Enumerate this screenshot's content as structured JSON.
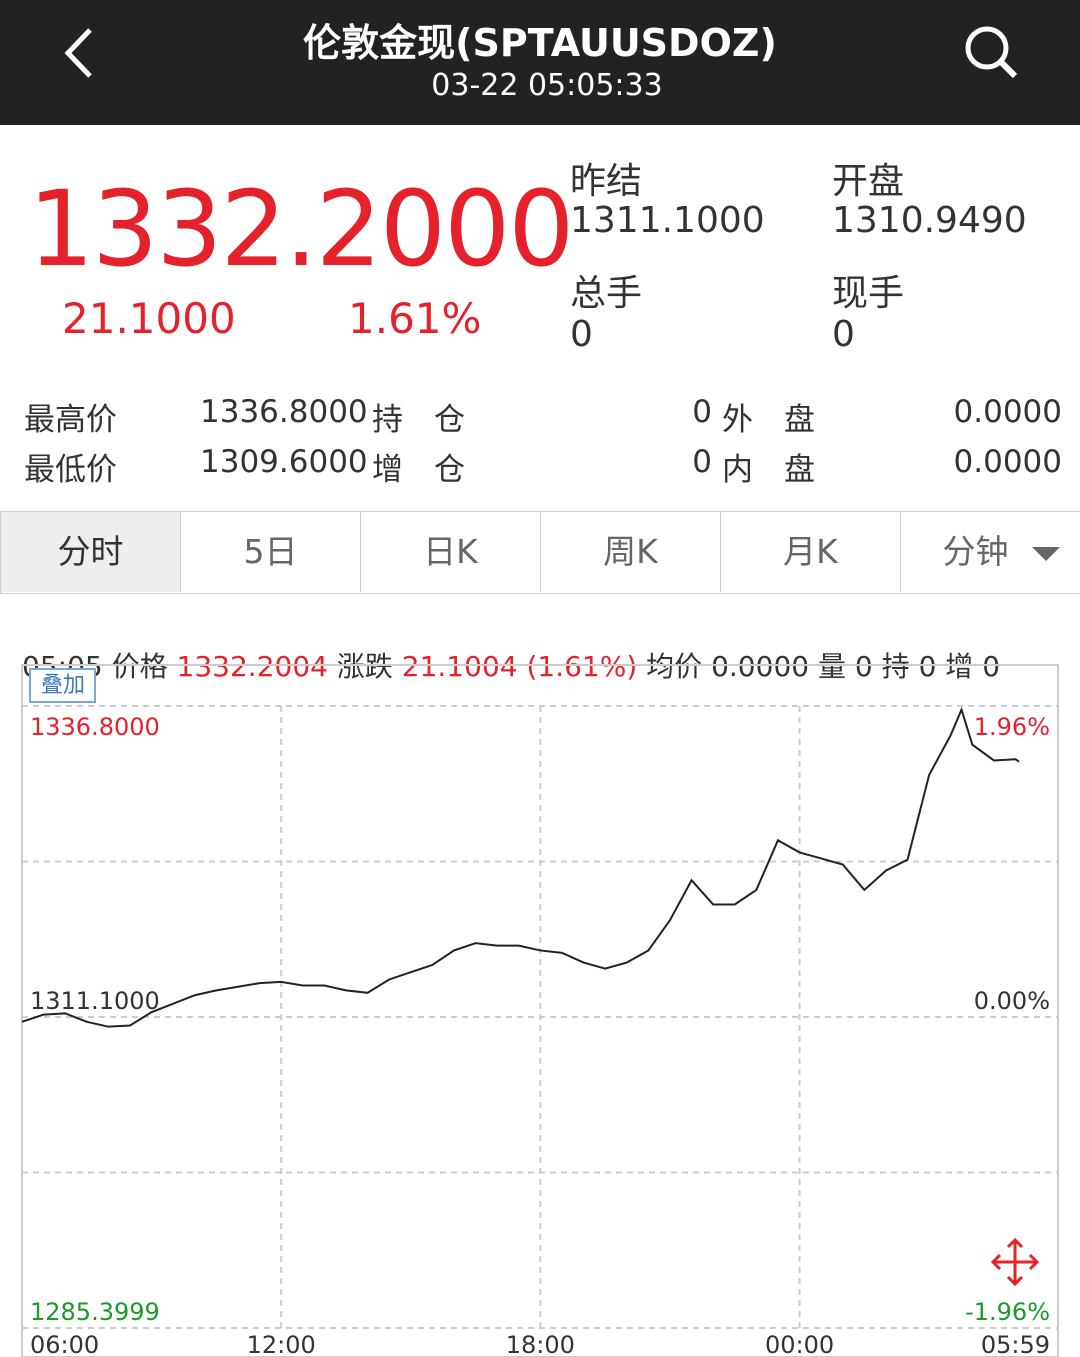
{
  "header": {
    "title": "伦敦金现(SPTAUUSDOZ)",
    "time": "03-22 05:05:33"
  },
  "quote": {
    "price": "1332.2000",
    "change": "21.1000",
    "change_pct": "1.61%",
    "fields": [
      {
        "label": "昨结",
        "value": "1311.1000"
      },
      {
        "label": "开盘",
        "value": "1310.9490"
      },
      {
        "label": "总手",
        "value": "0"
      },
      {
        "label": "现手",
        "value": "0"
      }
    ]
  },
  "stats": {
    "rows": [
      [
        "最高价",
        "1336.8000",
        "持　仓",
        "0",
        "外　盘",
        "0.0000"
      ],
      [
        "最低价",
        "1309.6000",
        "增　仓",
        "0",
        "内　盘",
        "0.0000"
      ]
    ]
  },
  "tabs": [
    "分时",
    "5日",
    "日K",
    "周K",
    "月K",
    "分钟"
  ],
  "info": [
    "05:05",
    "价格",
    "1332.2004",
    "涨跌",
    "21.1004 (1.61%)",
    "均价",
    "0.0000",
    "量",
    "0",
    "持",
    "0",
    "增",
    "0"
  ],
  "overlay_button": "叠加",
  "chart_data": {
    "type": "line",
    "x": [
      "06:00",
      "06:30",
      "07:00",
      "07:30",
      "08:00",
      "08:30",
      "09:00",
      "09:30",
      "10:00",
      "10:30",
      "11:00",
      "11:30",
      "12:00",
      "12:30",
      "13:00",
      "13:30",
      "14:00",
      "14:30",
      "15:00",
      "15:30",
      "16:00",
      "16:30",
      "17:00",
      "17:30",
      "18:00",
      "18:30",
      "19:00",
      "19:30",
      "20:00",
      "20:30",
      "21:00",
      "21:30",
      "22:00",
      "22:30",
      "23:00",
      "23:30",
      "00:00",
      "00:30",
      "01:00",
      "01:30",
      "02:00",
      "02:30",
      "03:00",
      "03:30",
      "03:45",
      "04:00",
      "04:30",
      "05:00",
      "05:05"
    ],
    "series": [
      {
        "color": "#222222",
        "values": [
          1310.7,
          1311.3,
          1311.4,
          1310.7,
          1310.3,
          1310.4,
          1311.5,
          1312.2,
          1312.9,
          1313.3,
          1313.6,
          1313.9,
          1314.0,
          1313.7,
          1313.7,
          1313.3,
          1313.1,
          1314.2,
          1314.8,
          1315.4,
          1316.6,
          1317.2,
          1317.0,
          1317.0,
          1316.6,
          1316.4,
          1315.6,
          1315.1,
          1315.6,
          1316.6,
          1319.1,
          1322.4,
          1320.4,
          1320.4,
          1321.6,
          1325.7,
          1324.7,
          1324.2,
          1323.7,
          1321.6,
          1323.2,
          1324.1,
          1331.1,
          1334.4,
          1336.5,
          1333.6,
          1332.3,
          1332.4,
          1332.2
        ]
      }
    ],
    "xlim": [
      "06:00",
      "05:59"
    ],
    "xticks": [
      "06:00",
      "12:00",
      "18:00",
      "00:00",
      "05:59"
    ],
    "ylim": [
      1285.3999,
      1336.8
    ],
    "yticks": [
      {
        "value": 1285.3999,
        "label": "1285.3999"
      },
      {
        "value": 1311.1,
        "label": "1311.1000"
      },
      {
        "value": 1336.8,
        "label": "1336.8000"
      }
    ],
    "y2lim": [
      -1.96,
      1.96
    ],
    "y2ticks": [
      {
        "value": -1.96,
        "label": "-1.96%"
      },
      {
        "value": 0,
        "label": "0.00%"
      },
      {
        "value": 1.96,
        "label": "1.96%"
      }
    ],
    "grid": true
  }
}
